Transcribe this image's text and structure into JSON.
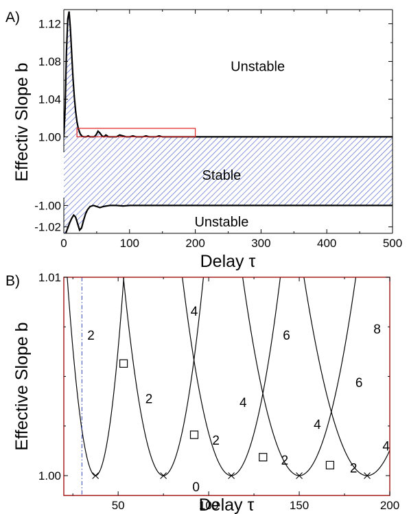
{
  "chart_data": [
    {
      "panel_label": "A)",
      "type": "area",
      "xlabel": "Delay τ",
      "ylabel": "Effectiv Slope b",
      "xlim": [
        0,
        500
      ],
      "x_ticks": [
        0,
        100,
        200,
        300,
        400,
        500
      ],
      "x_tick_labels": [
        "0",
        "100",
        "200",
        "300",
        "400",
        "500"
      ],
      "upper_segment": {
        "ylim": [
          0.985,
          1.135
        ],
        "y_ticks": [
          1.0,
          1.04,
          1.08,
          1.12
        ],
        "y_tick_labels": [
          "1.00",
          "1.04",
          "1.08",
          "1.12"
        ],
        "boundary": {
          "x": [
            0,
            2,
            4,
            6,
            8,
            10,
            12,
            14,
            16,
            18,
            20,
            22,
            25,
            28,
            31,
            34,
            37,
            40,
            43,
            46,
            49,
            52,
            55,
            58,
            61,
            64,
            68,
            72,
            76,
            80,
            85,
            90,
            95,
            100,
            105,
            110,
            115,
            120,
            125,
            130,
            135,
            140,
            145,
            150,
            160,
            170,
            180,
            190,
            200,
            250,
            300,
            350,
            400,
            450,
            500
          ],
          "y": [
            1.0,
            1.03,
            1.09,
            1.125,
            1.133,
            1.115,
            1.088,
            1.062,
            1.042,
            1.027,
            1.016,
            1.009,
            1.003,
            1.0005,
            1.0,
            1.0,
            1.001,
            1.0,
            1.0,
            1.0,
            1.002,
            1.006,
            1.004,
            1.001,
            1.0,
            1.002,
            1.0,
            1.0,
            1.0,
            1.0,
            1.002,
            1.001,
            1.0,
            1.0,
            1.001,
            1.0,
            1.0,
            1.0,
            1.001,
            1.0,
            1.0,
            1.0,
            1.001,
            1.0,
            1.0,
            1.0,
            1.0,
            1.0,
            1.0,
            1.0,
            1.0,
            1.0,
            1.0,
            1.0,
            1.0
          ]
        }
      },
      "lower_segment": {
        "ylim": [
          -1.026,
          -0.994
        ],
        "y_ticks": [
          -1.0,
          -1.02
        ],
        "y_tick_labels": [
          "-1.00",
          "-1.02"
        ],
        "boundary": {
          "x": [
            0,
            3,
            6,
            9,
            12,
            15,
            18,
            21,
            24,
            27,
            30,
            33,
            36,
            40,
            45,
            50,
            55,
            60,
            70,
            80,
            90,
            100,
            110,
            120,
            150,
            200,
            300,
            400,
            500
          ],
          "y": [
            -1.03,
            -1.026,
            -1.021,
            -1.016,
            -1.012,
            -1.009,
            -1.011,
            -1.017,
            -1.023,
            -1.021,
            -1.014,
            -1.008,
            -1.004,
            -1.001,
            -1.0,
            -1.001,
            -1.002,
            -1.001,
            -1.0,
            -1.0,
            -1.0005,
            -1.0,
            -1.0,
            -1.0,
            -1.0,
            -1.0,
            -1.0,
            -1.0,
            -1.0
          ]
        }
      },
      "regions": [
        {
          "label": "Unstable",
          "x": 295,
          "segment": "upper",
          "y": 1.075
        },
        {
          "label": "Stable",
          "x": 240,
          "segment": "gap",
          "y": 0
        },
        {
          "label": "Unstable",
          "x": 240,
          "segment": "lower",
          "y": -1.015
        }
      ],
      "zoom_box": {
        "x": [
          20,
          200
        ],
        "y": [
          1.0,
          1.009
        ]
      },
      "hatch_color": "#3c4fc8",
      "zoom_color": "#e03030"
    },
    {
      "panel_label": "B)",
      "type": "line",
      "xlabel": "Delay τ",
      "ylabel": "Effective Slope b",
      "xlim": [
        20,
        200
      ],
      "ylim": [
        0.999,
        1.01
      ],
      "x_ticks": [
        50,
        100,
        150,
        200
      ],
      "x_tick_labels": [
        "50",
        "100",
        "150",
        "200"
      ],
      "y_ticks": [
        1.0,
        1.01
      ],
      "y_tick_labels": [
        "1.00",
        "1.01"
      ],
      "curve_minima_x": [
        37.5,
        75,
        112.5,
        150,
        187.5
      ],
      "curve_width": 12.2,
      "curve_base": 1.0,
      "dashdot_x": 30,
      "crossing_markers": {
        "x": [
          37.5,
          75,
          112.5,
          150,
          187.5
        ],
        "y": [
          1.0,
          1.0,
          1.0,
          1.0,
          1.0
        ]
      },
      "square_markers": {
        "x": [
          53,
          92,
          130,
          167
        ],
        "y": [
          1.00565,
          1.00206,
          1.00093,
          1.00053
        ]
      },
      "branch_labels": [
        {
          "text": "2",
          "x": 35,
          "y": 1.0071
        },
        {
          "text": "4",
          "x": 92,
          "y": 1.0083
        },
        {
          "text": "6",
          "x": 143,
          "y": 1.0071
        },
        {
          "text": "8",
          "x": 193,
          "y": 1.0074
        },
        {
          "text": "2",
          "x": 67,
          "y": 1.0039
        },
        {
          "text": "4",
          "x": 119,
          "y": 1.0037
        },
        {
          "text": "6",
          "x": 183,
          "y": 1.0047
        },
        {
          "text": "2",
          "x": 104,
          "y": 1.0018
        },
        {
          "text": "4",
          "x": 160,
          "y": 1.0026
        },
        {
          "text": "2",
          "x": 142,
          "y": 1.0008
        },
        {
          "text": "4",
          "x": 198,
          "y": 1.0015
        },
        {
          "text": "2",
          "x": 180,
          "y": 1.0004
        },
        {
          "text": "0",
          "x": 93,
          "y": 0.99945
        }
      ],
      "frame_color": "#a01010",
      "dashdot_color": "#3040b0"
    }
  ]
}
